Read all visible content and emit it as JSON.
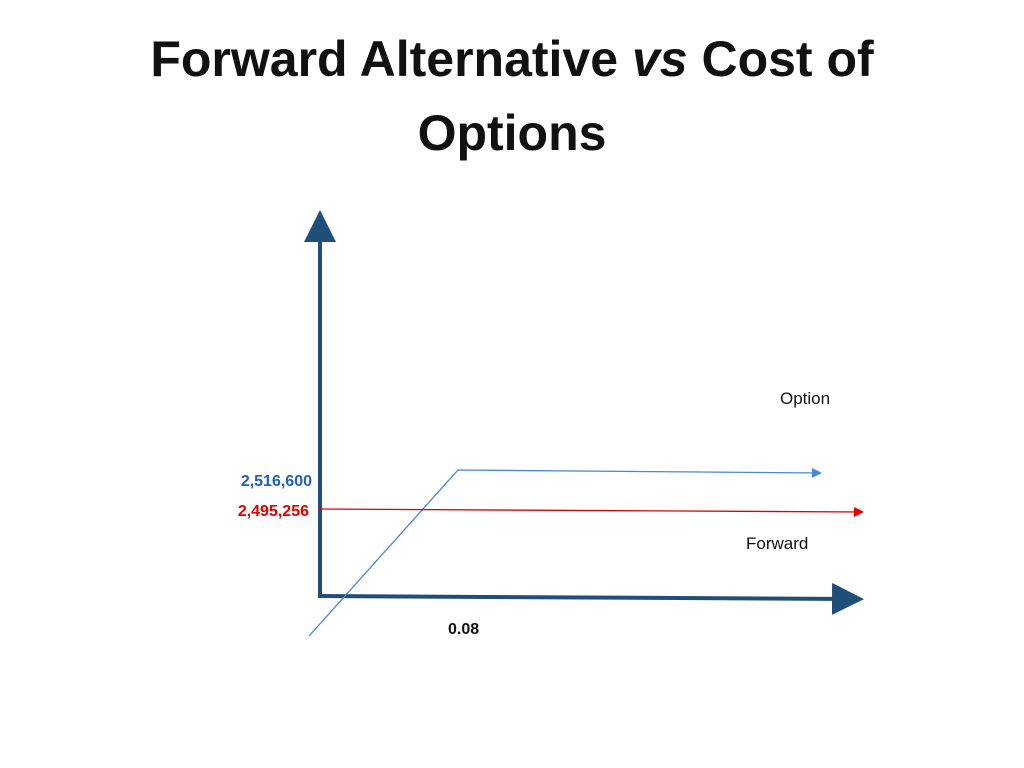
{
  "title": {
    "part1": "Forward Alternative ",
    "italic": "vs",
    "part2": " Cost of",
    "line2": "Options"
  },
  "diagram": {
    "option_label": "Option",
    "forward_label": "Forward",
    "option_value_label": "2,516,600",
    "forward_value_label": "2,495,256",
    "strike_label": "0.08"
  },
  "colors": {
    "axis": "#1f4e79",
    "option_line": "#4a86d8",
    "forward_line": "#e00000",
    "option_value_text": "#1f5fbf",
    "forward_value_text": "#e00000",
    "text": "#111111"
  }
}
